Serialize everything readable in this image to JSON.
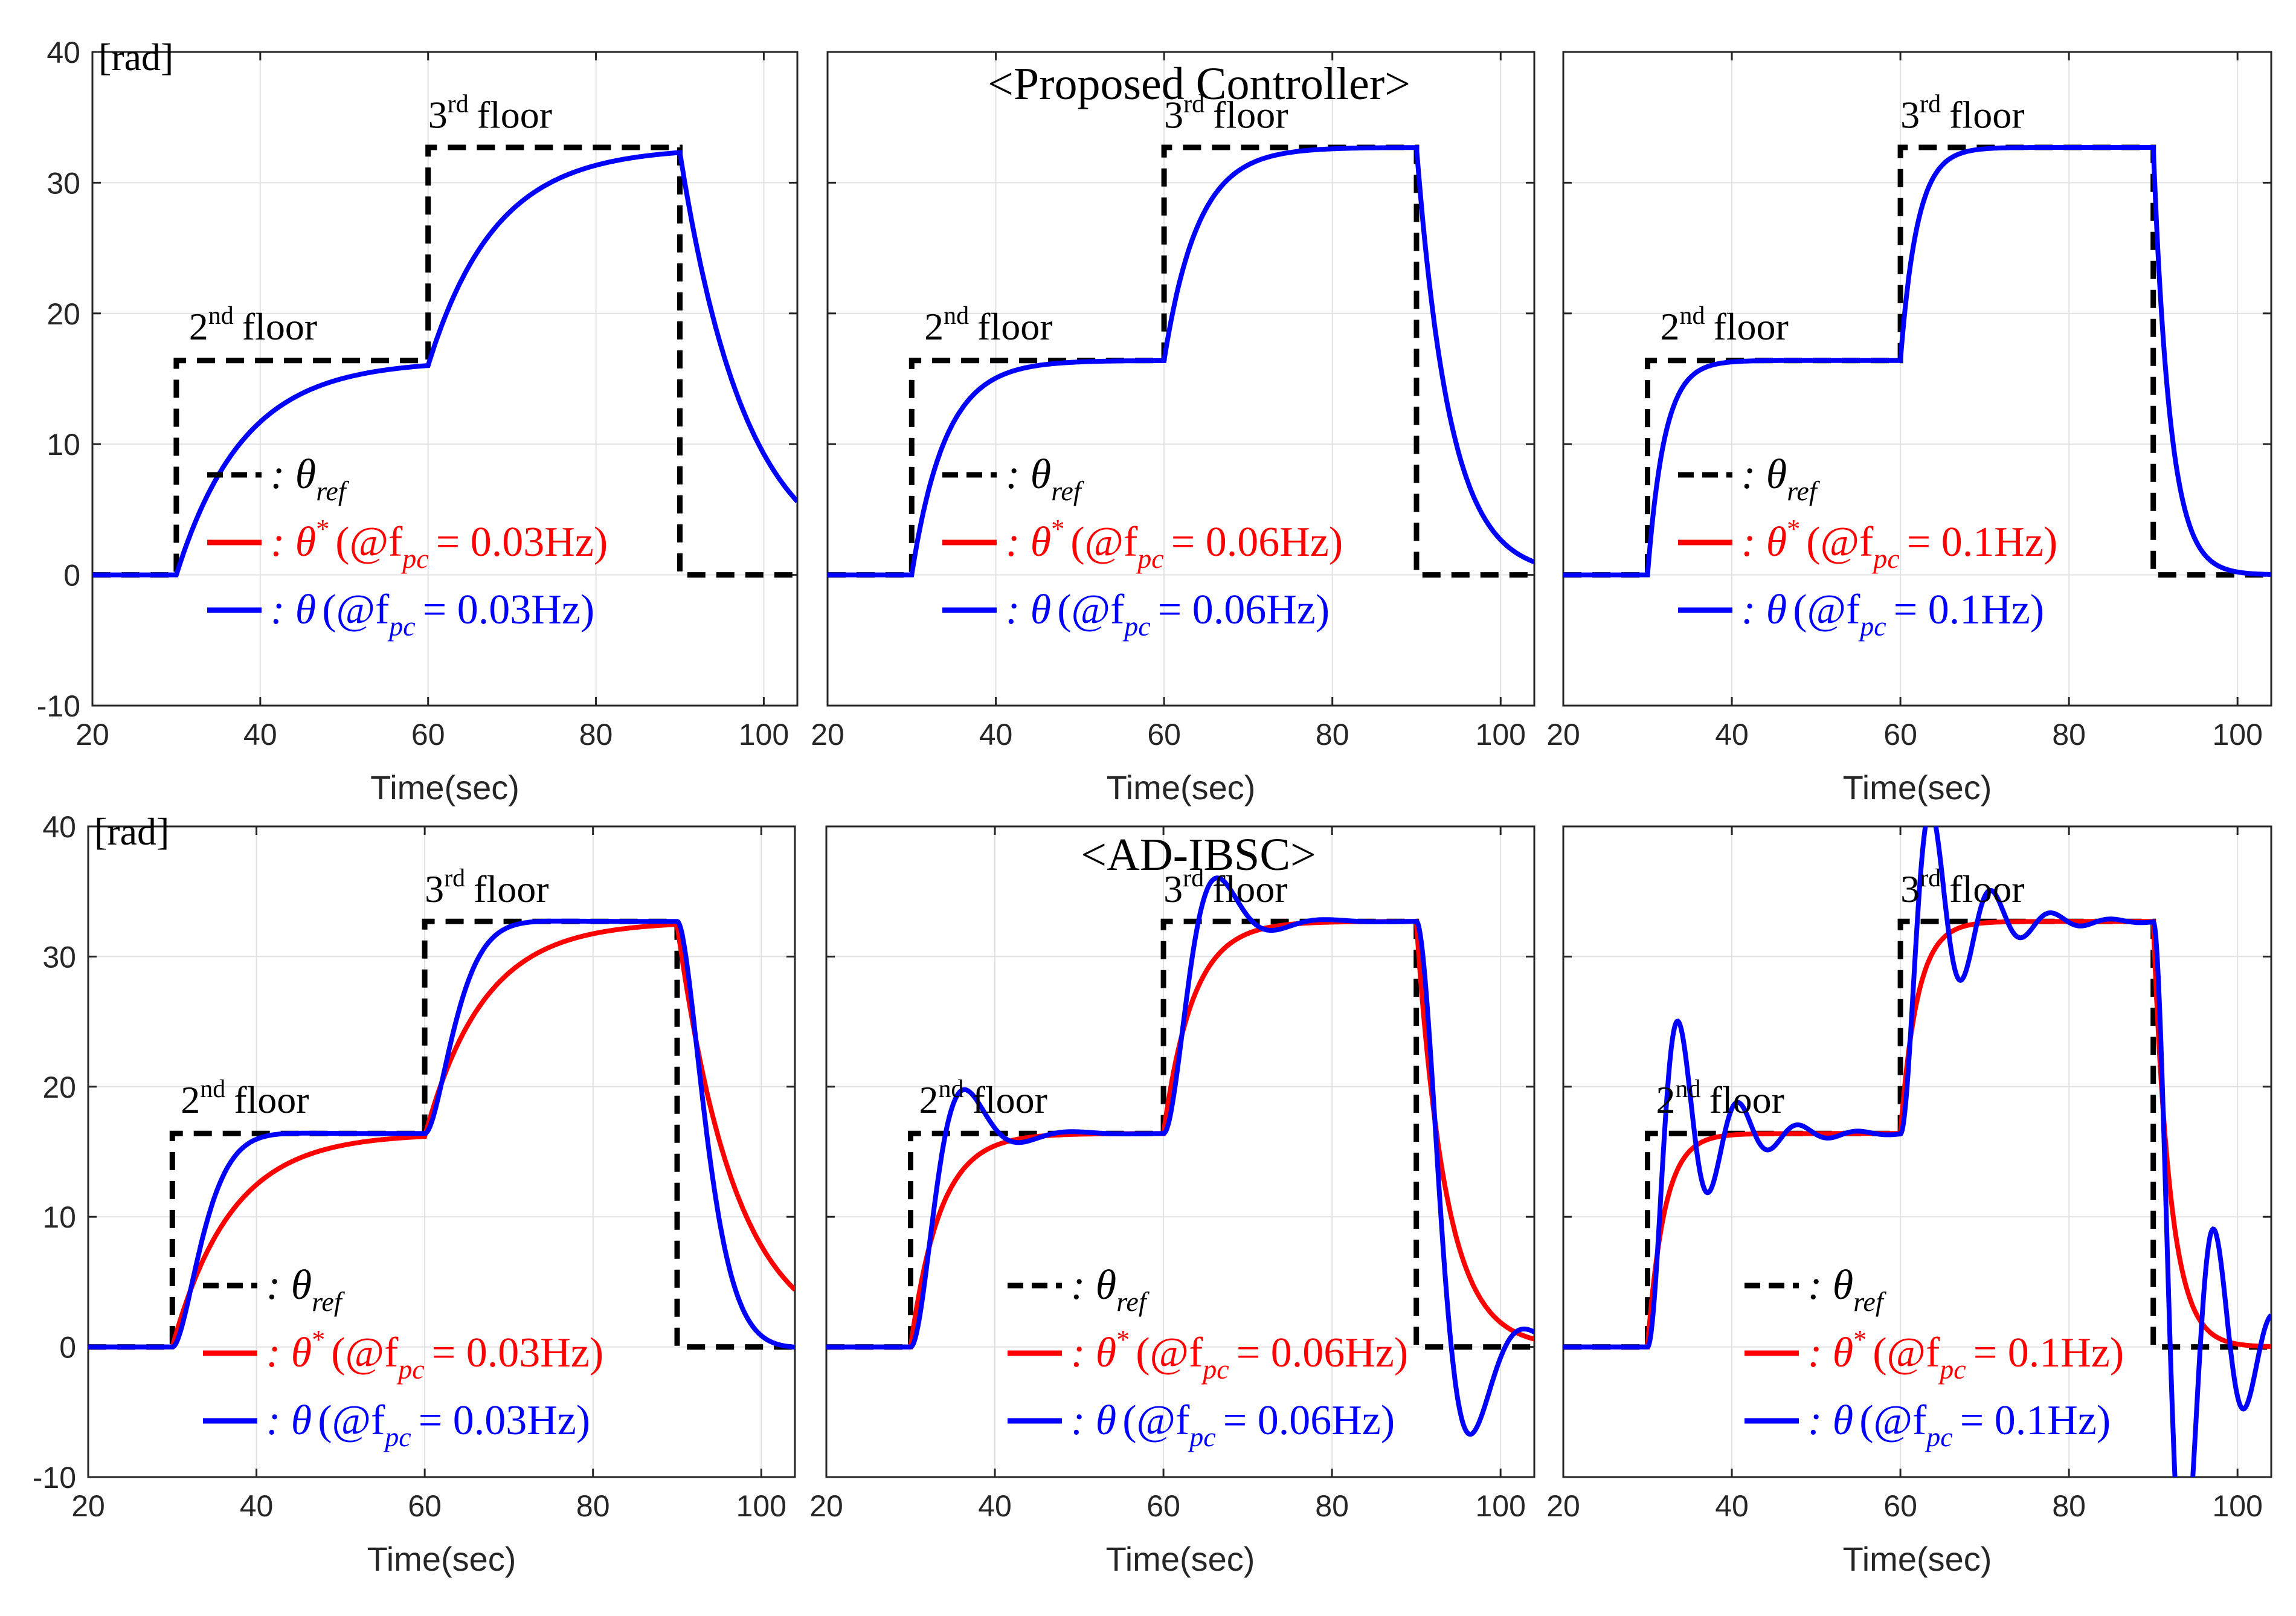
{
  "colors": {
    "reference": "#000000",
    "plant_model": "#ff0000",
    "measured": "#0000ff"
  },
  "chart_data": [
    {
      "type": "line",
      "controller": "proposed",
      "tau": 8.0,
      "show_model_curve": false,
      "title": "",
      "y_unit_label": "[rad]",
      "xlabel": "Time(sec)",
      "xlim": [
        20,
        104
      ],
      "ylim": [
        -10,
        40
      ],
      "xticks": [
        "20",
        "40",
        "60",
        "80",
        "100"
      ],
      "yticks": [
        "-10",
        "0",
        "10",
        "20",
        "30",
        "40"
      ],
      "annotations": {
        "floor2_num": "2",
        "floor2_sup": "nd",
        "floor2_word": "floor",
        "floor3_num": "3",
        "floor3_sup": "rd",
        "floor3_word": "floor"
      },
      "legend": {
        "ref_label": ": θ",
        "ref_sub": "ref",
        "model_label": ": θ",
        "model_sup": "*",
        "model_prefix": "(@f",
        "model_sub": "pc",
        "model_value": "= 0.03Hz)",
        "meas_label": ": θ",
        "meas_prefix": "(@f",
        "meas_sub": "pc",
        "meas_value": "= 0.03Hz)"
      },
      "series": [
        {
          "name": "θ_ref",
          "x": [
            20,
            30,
            30,
            60,
            60,
            90,
            90,
            104
          ],
          "y": [
            0,
            0,
            16.4,
            16.4,
            32.7,
            32.7,
            0,
            0
          ]
        }
      ]
    },
    {
      "type": "line",
      "controller": "proposed",
      "tau": 4.0,
      "show_model_curve": false,
      "title": "<Proposed Controller>",
      "y_unit_label": "",
      "xlabel": "Time(sec)",
      "xlim": [
        20,
        104
      ],
      "ylim": [
        -10,
        40
      ],
      "xticks": [
        "20",
        "40",
        "60",
        "80",
        "100"
      ],
      "yticks": [],
      "annotations": {
        "floor2_num": "2",
        "floor2_sup": "nd",
        "floor2_word": "floor",
        "floor3_num": "3",
        "floor3_sup": "rd",
        "floor3_word": "floor"
      },
      "legend": {
        "ref_label": ": θ",
        "ref_sub": "ref",
        "model_label": ": θ",
        "model_sup": "*",
        "model_prefix": "(@f",
        "model_sub": "pc",
        "model_value": "= 0.06Hz)",
        "meas_label": ": θ",
        "meas_prefix": "(@f",
        "meas_sub": "pc",
        "meas_value": "= 0.06Hz)"
      },
      "series": [
        {
          "name": "θ_ref",
          "x": [
            20,
            30,
            30,
            60,
            60,
            90,
            90,
            104
          ],
          "y": [
            0,
            0,
            16.4,
            16.4,
            32.7,
            32.7,
            0,
            0
          ]
        }
      ]
    },
    {
      "type": "line",
      "controller": "proposed",
      "tau": 2.0,
      "show_model_curve": false,
      "title": "",
      "y_unit_label": "",
      "xlabel": "Time(sec)",
      "xlim": [
        20,
        104
      ],
      "ylim": [
        -10,
        40
      ],
      "xticks": [
        "20",
        "40",
        "60",
        "80",
        "100"
      ],
      "yticks": [],
      "annotations": {
        "floor2_num": "2",
        "floor2_sup": "nd",
        "floor2_word": "floor",
        "floor3_num": "3",
        "floor3_sup": "rd",
        "floor3_word": "floor"
      },
      "legend": {
        "ref_label": ": θ",
        "ref_sub": "ref",
        "model_label": ": θ",
        "model_sup": "*",
        "model_prefix": "(@f",
        "model_sub": "pc",
        "model_value": "= 0.1Hz)",
        "meas_label": ": θ",
        "meas_prefix": "(@f",
        "meas_sub": "pc",
        "meas_value": "= 0.1Hz)"
      },
      "series": [
        {
          "name": "θ_ref",
          "x": [
            20,
            30,
            30,
            60,
            60,
            90,
            90,
            104
          ],
          "y": [
            0,
            0,
            16.4,
            16.4,
            32.7,
            32.7,
            0,
            0
          ]
        }
      ]
    },
    {
      "type": "line",
      "controller": "ad-ibsc",
      "tau": 7.0,
      "wn": 0.45,
      "zeta": 0.9,
      "show_model_curve": true,
      "title": "",
      "y_unit_label": "[rad]",
      "xlabel": "Time(sec)",
      "xlim": [
        20,
        104
      ],
      "ylim": [
        -10,
        40
      ],
      "xticks": [
        "20",
        "40",
        "60",
        "80",
        "100"
      ],
      "yticks": [
        "-10",
        "0",
        "10",
        "20",
        "30",
        "40"
      ],
      "annotations": {
        "floor2_num": "2",
        "floor2_sup": "nd",
        "floor2_word": "floor",
        "floor3_num": "3",
        "floor3_sup": "rd",
        "floor3_word": "floor"
      },
      "legend": {
        "ref_label": ": θ",
        "ref_sub": "ref",
        "model_label": ": θ",
        "model_sup": "*",
        "model_prefix": "(@f",
        "model_sub": "pc",
        "model_value": "= 0.03Hz)",
        "meas_label": ": θ",
        "meas_prefix": "(@f",
        "meas_sub": "pc",
        "meas_value": "= 0.03Hz)"
      },
      "series": [
        {
          "name": "θ_ref",
          "x": [
            20,
            30,
            30,
            60,
            60,
            90,
            90,
            104
          ],
          "y": [
            0,
            0,
            16.4,
            16.4,
            32.7,
            32.7,
            0,
            0
          ]
        }
      ]
    },
    {
      "type": "line",
      "controller": "ad-ibsc",
      "tau": 3.5,
      "wn": 0.55,
      "zeta": 0.45,
      "show_model_curve": true,
      "title": "<AD-IBSC>",
      "y_unit_label": "",
      "xlabel": "Time(sec)",
      "xlim": [
        20,
        104
      ],
      "ylim": [
        -10,
        40
      ],
      "xticks": [
        "20",
        "40",
        "60",
        "80",
        "100"
      ],
      "yticks": [],
      "annotations": {
        "floor2_num": "2",
        "floor2_sup": "nd",
        "floor2_word": "floor",
        "floor3_num": "3",
        "floor3_sup": "rd",
        "floor3_word": "floor"
      },
      "legend": {
        "ref_label": ": θ",
        "ref_sub": "ref",
        "model_label": ": θ",
        "model_sup": "*",
        "model_prefix": "(@f",
        "model_sub": "pc",
        "model_value": "= 0.06Hz)",
        "meas_label": ": θ",
        "meas_prefix": "(@f",
        "meas_sub": "pc",
        "meas_value": "= 0.06Hz)"
      },
      "series": [
        {
          "name": "θ_ref",
          "x": [
            20,
            30,
            30,
            60,
            60,
            90,
            90,
            104
          ],
          "y": [
            0,
            0,
            16.4,
            16.4,
            32.7,
            32.7,
            0,
            0
          ]
        }
      ]
    },
    {
      "type": "line",
      "controller": "ad-ibsc",
      "tau": 2.0,
      "wn": 0.9,
      "zeta": 0.2,
      "show_model_curve": true,
      "title": "",
      "y_unit_label": "",
      "xlabel": "Time(sec)",
      "xlim": [
        20,
        104
      ],
      "ylim": [
        -10,
        40
      ],
      "xticks": [
        "20",
        "40",
        "60",
        "80",
        "100"
      ],
      "yticks": [],
      "annotations": {
        "floor2_num": "2",
        "floor2_sup": "nd",
        "floor2_word": "floor",
        "floor3_num": "3",
        "floor3_sup": "rd",
        "floor3_word": "floor"
      },
      "legend": {
        "ref_label": ": θ",
        "ref_sub": "ref",
        "model_label": ": θ",
        "model_sup": "*",
        "model_prefix": "(@f",
        "model_sub": "pc",
        "model_value": "= 0.1Hz)",
        "meas_label": ": θ",
        "meas_prefix": "(@f",
        "meas_sub": "pc",
        "meas_value": "= 0.1Hz)"
      },
      "series": [
        {
          "name": "θ_ref",
          "x": [
            20,
            30,
            30,
            60,
            60,
            90,
            90,
            104
          ],
          "y": [
            0,
            0,
            16.4,
            16.4,
            32.7,
            32.7,
            0,
            0
          ]
        }
      ]
    }
  ]
}
